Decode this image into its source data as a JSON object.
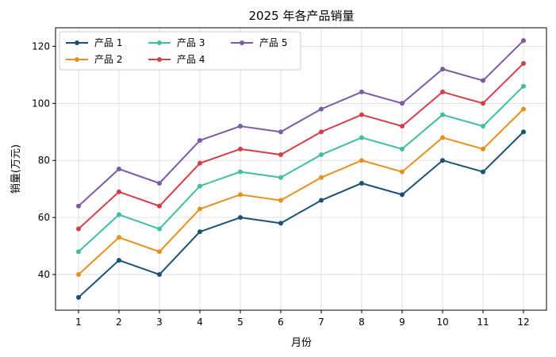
{
  "chart_data": {
    "type": "line",
    "title": "2025 年各产品销量",
    "xlabel": "月份",
    "ylabel": "销量(万元)",
    "x": [
      1,
      2,
      3,
      4,
      5,
      6,
      7,
      8,
      9,
      10,
      11,
      12
    ],
    "ylim": [
      27.5,
      126.5
    ],
    "yticks": [
      40,
      60,
      80,
      100,
      120
    ],
    "grid": true,
    "legend_position": "top-left",
    "series": [
      {
        "name": "产品 1",
        "color": "#1a5276",
        "values": [
          32,
          45,
          40,
          55,
          60,
          58,
          66,
          72,
          68,
          80,
          76,
          90
        ]
      },
      {
        "name": "产品 2",
        "color": "#e8901f",
        "values": [
          40,
          53,
          48,
          63,
          68,
          66,
          74,
          80,
          76,
          88,
          84,
          98
        ]
      },
      {
        "name": "产品 3",
        "color": "#3fbf9f",
        "values": [
          48,
          61,
          56,
          71,
          76,
          74,
          82,
          88,
          84,
          96,
          92,
          106
        ]
      },
      {
        "name": "产品 4",
        "color": "#d33f49",
        "values": [
          56,
          69,
          64,
          79,
          84,
          82,
          90,
          96,
          92,
          104,
          100,
          114
        ]
      },
      {
        "name": "产品 5",
        "color": "#7b5aa6",
        "values": [
          64,
          77,
          72,
          87,
          92,
          90,
          98,
          104,
          100,
          112,
          108,
          122
        ]
      }
    ]
  }
}
